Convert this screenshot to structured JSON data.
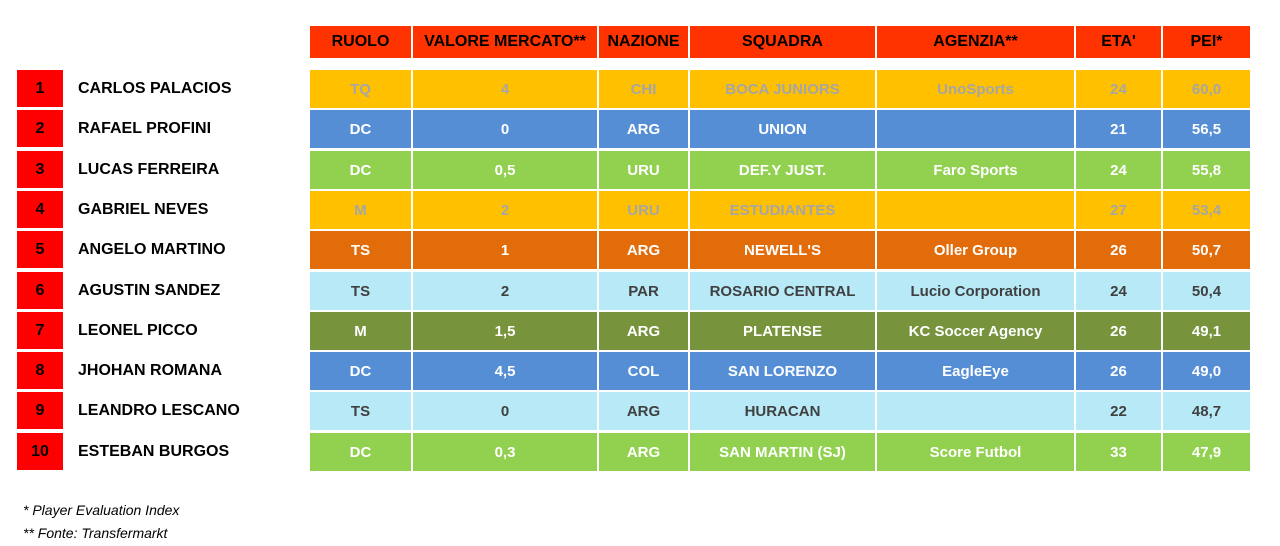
{
  "headers": [
    "RUOLO",
    "VALORE MERCATO**",
    "NAZIONE",
    "SQUADRA",
    "AGENZIA**",
    "ETA'",
    "PEI*"
  ],
  "players": [
    {
      "rank": "1",
      "name": "CARLOS PALACIOS",
      "ruolo": "TQ",
      "valore": "4",
      "nazione": "CHI",
      "squadra": "BOCA JUNIORS",
      "agenzia": "UnoSports",
      "eta": "24",
      "pei": "60,0",
      "bg": "#ffc000",
      "fg": "#a6a6a6"
    },
    {
      "rank": "2",
      "name": "RAFAEL PROFINI",
      "ruolo": "DC",
      "valore": "0",
      "nazione": "ARG",
      "squadra": "UNION",
      "agenzia": "",
      "eta": "21",
      "pei": "56,5",
      "bg": "#558ed5",
      "fg": "#ffffff"
    },
    {
      "rank": "3",
      "name": "LUCAS FERREIRA",
      "ruolo": "DC",
      "valore": "0,5",
      "nazione": "URU",
      "squadra": "DEF.Y JUST.",
      "agenzia": "Faro Sports",
      "eta": "24",
      "pei": "55,8",
      "bg": "#92d050",
      "fg": "#ffffff"
    },
    {
      "rank": "4",
      "name": "GABRIEL NEVES",
      "ruolo": "M",
      "valore": "2",
      "nazione": "URU",
      "squadra": "ESTUDIANTES",
      "agenzia": "",
      "eta": "27",
      "pei": "53,4",
      "bg": "#ffc000",
      "fg": "#a6a6a6"
    },
    {
      "rank": "5",
      "name": "ANGELO MARTINO",
      "ruolo": "TS",
      "valore": "1",
      "nazione": "ARG",
      "squadra": "NEWELL'S",
      "agenzia": "Oller Group",
      "eta": "26",
      "pei": "50,7",
      "bg": "#e26b0a",
      "fg": "#ffffff"
    },
    {
      "rank": "6",
      "name": "AGUSTIN SANDEZ",
      "ruolo": "TS",
      "valore": "2",
      "nazione": "PAR",
      "squadra": "ROSARIO CENTRAL",
      "agenzia": "Lucio Corporation",
      "eta": "24",
      "pei": "50,4",
      "bg": "#b7e9f7",
      "fg": "#404040"
    },
    {
      "rank": "7",
      "name": "LEONEL PICCO",
      "ruolo": "M",
      "valore": "1,5",
      "nazione": "ARG",
      "squadra": "PLATENSE",
      "agenzia": "KC Soccer Agency",
      "eta": "26",
      "pei": "49,1",
      "bg": "#77933c",
      "fg": "#ffffff"
    },
    {
      "rank": "8",
      "name": "JHOHAN ROMANA",
      "ruolo": "DC",
      "valore": "4,5",
      "nazione": "COL",
      "squadra": "SAN LORENZO",
      "agenzia": "EagleEye",
      "eta": "26",
      "pei": "49,0",
      "bg": "#558ed5",
      "fg": "#ffffff"
    },
    {
      "rank": "9",
      "name": "LEANDRO LESCANO",
      "ruolo": "TS",
      "valore": "0",
      "nazione": "ARG",
      "squadra": "HURACAN",
      "agenzia": "",
      "eta": "22",
      "pei": "48,7",
      "bg": "#b7e9f7",
      "fg": "#404040"
    },
    {
      "rank": "10",
      "name": "ESTEBAN BURGOS",
      "ruolo": "DC",
      "valore": "0,3",
      "nazione": "ARG",
      "squadra": "SAN MARTIN (SJ)",
      "agenzia": "Score Futbol",
      "eta": "33",
      "pei": "47,9",
      "bg": "#92d050",
      "fg": "#ffffff"
    }
  ],
  "footnotes": [
    "* Player Evaluation Index",
    "** Fonte: Transfermarkt"
  ]
}
